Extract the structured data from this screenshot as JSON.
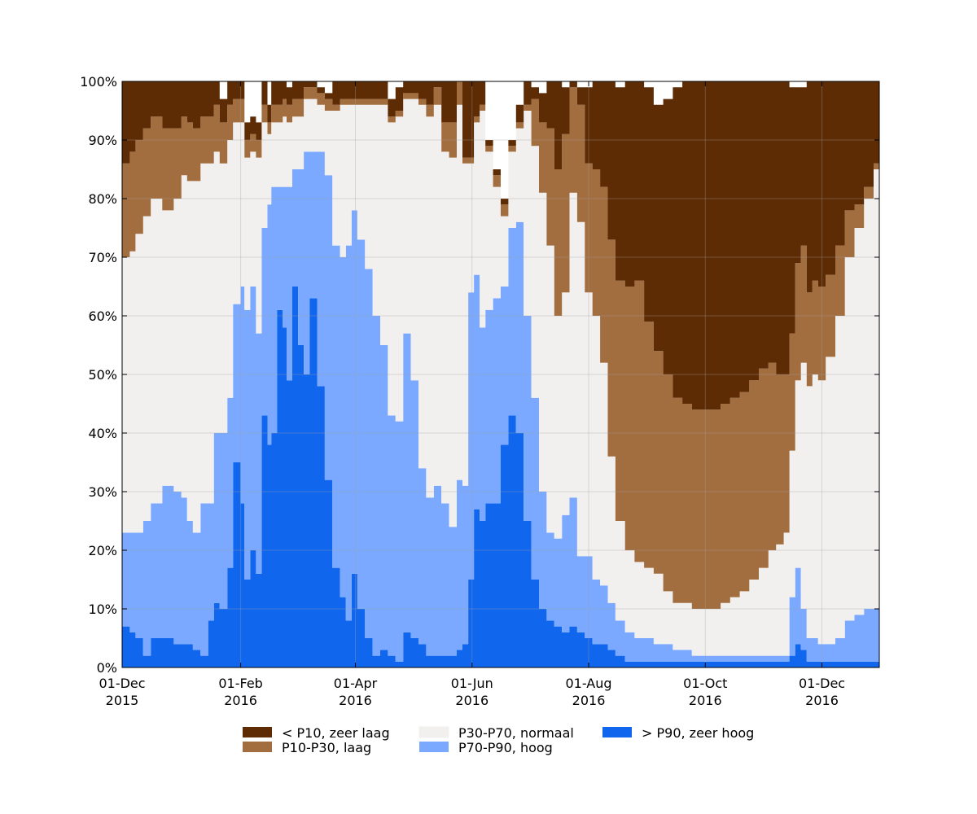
{
  "chart_data": {
    "type": "area",
    "stacked": true,
    "percent": true,
    "ylim": [
      0,
      100
    ],
    "xlim": [
      "2015-12-01",
      "2016-12-31"
    ],
    "grid": true,
    "legend_position": "bottom",
    "yticks": [
      "0%",
      "10%",
      "20%",
      "30%",
      "40%",
      "50%",
      "60%",
      "70%",
      "80%",
      "90%",
      "100%"
    ],
    "xticks": [
      {
        "date": "2015-12-01",
        "line1": "01-Dec",
        "line2": "2015"
      },
      {
        "date": "2016-02-01",
        "line1": "01-Feb",
        "line2": "2016"
      },
      {
        "date": "2016-04-01",
        "line1": "01-Apr",
        "line2": "2016"
      },
      {
        "date": "2016-06-01",
        "line1": "01-Jun",
        "line2": "2016"
      },
      {
        "date": "2016-08-01",
        "line1": "01-Aug",
        "line2": "2016"
      },
      {
        "date": "2016-10-01",
        "line1": "01-Oct",
        "line2": "2016"
      },
      {
        "date": "2016-12-01",
        "line1": "01-Dec",
        "line2": "2016"
      }
    ],
    "x": [
      "2015-12-01",
      "2015-12-05",
      "2015-12-08",
      "2015-12-12",
      "2015-12-16",
      "2015-12-22",
      "2015-12-28",
      "2016-01-01",
      "2016-01-04",
      "2016-01-07",
      "2016-01-11",
      "2016-01-15",
      "2016-01-18",
      "2016-01-21",
      "2016-01-25",
      "2016-01-28",
      "2016-02-01",
      "2016-02-03",
      "2016-02-06",
      "2016-02-09",
      "2016-02-12",
      "2016-02-15",
      "2016-02-17",
      "2016-02-20",
      "2016-02-23",
      "2016-02-25",
      "2016-02-28",
      "2016-03-02",
      "2016-03-05",
      "2016-03-08",
      "2016-03-12",
      "2016-03-16",
      "2016-03-20",
      "2016-03-24",
      "2016-03-27",
      "2016-03-30",
      "2016-04-02",
      "2016-04-06",
      "2016-04-10",
      "2016-04-14",
      "2016-04-18",
      "2016-04-22",
      "2016-04-26",
      "2016-04-30",
      "2016-05-04",
      "2016-05-08",
      "2016-05-12",
      "2016-05-16",
      "2016-05-20",
      "2016-05-24",
      "2016-05-27",
      "2016-05-30",
      "2016-06-02",
      "2016-06-05",
      "2016-06-08",
      "2016-06-12",
      "2016-06-16",
      "2016-06-20",
      "2016-06-24",
      "2016-06-28",
      "2016-07-02",
      "2016-07-06",
      "2016-07-10",
      "2016-07-14",
      "2016-07-18",
      "2016-07-22",
      "2016-07-26",
      "2016-07-30",
      "2016-08-03",
      "2016-08-07",
      "2016-08-11",
      "2016-08-15",
      "2016-08-20",
      "2016-08-25",
      "2016-08-30",
      "2016-09-04",
      "2016-09-09",
      "2016-09-14",
      "2016-09-19",
      "2016-09-24",
      "2016-09-29",
      "2016-10-04",
      "2016-10-09",
      "2016-10-14",
      "2016-10-19",
      "2016-10-24",
      "2016-10-29",
      "2016-11-03",
      "2016-11-07",
      "2016-11-11",
      "2016-11-14",
      "2016-11-17",
      "2016-11-20",
      "2016-11-23",
      "2016-11-26",
      "2016-11-29",
      "2016-12-03",
      "2016-12-08",
      "2016-12-13",
      "2016-12-18",
      "2016-12-23",
      "2016-12-28",
      "2016-12-31"
    ],
    "series": [
      {
        "name": "> P90, zeer hoog",
        "color": "#1166ee",
        "values": [
          7,
          6,
          5,
          2,
          5,
          5,
          4,
          4,
          4,
          3,
          2,
          8,
          11,
          10,
          17,
          35,
          28,
          15,
          20,
          16,
          43,
          38,
          40,
          61,
          58,
          49,
          65,
          55,
          50,
          63,
          48,
          32,
          17,
          12,
          8,
          16,
          10,
          5,
          2,
          3,
          2,
          1,
          6,
          5,
          4,
          2,
          2,
          2,
          2,
          3,
          4,
          15,
          27,
          25,
          28,
          28,
          38,
          43,
          40,
          25,
          15,
          10,
          8,
          7,
          6,
          7,
          6,
          5,
          4,
          4,
          3,
          2,
          1,
          1,
          1,
          1,
          1,
          1,
          1,
          1,
          1,
          1,
          1,
          1,
          1,
          1,
          1,
          1,
          1,
          1,
          2,
          4,
          3,
          1,
          1,
          1,
          1,
          1,
          1,
          1,
          1,
          1,
          1
        ]
      },
      {
        "name": "P70-P90, hoog",
        "color": "#7aa9ff",
        "values": [
          16,
          17,
          18,
          23,
          23,
          26,
          26,
          25,
          21,
          20,
          26,
          20,
          29,
          30,
          29,
          27,
          37,
          46,
          45,
          41,
          32,
          41,
          42,
          21,
          24,
          33,
          20,
          30,
          38,
          25,
          40,
          52,
          55,
          58,
          64,
          62,
          63,
          63,
          58,
          52,
          41,
          41,
          51,
          44,
          30,
          27,
          29,
          26,
          22,
          29,
          27,
          49,
          40,
          33,
          33,
          35,
          27,
          32,
          36,
          35,
          31,
          20,
          15,
          15,
          20,
          22,
          13,
          14,
          11,
          10,
          8,
          6,
          5,
          4,
          4,
          3,
          3,
          2,
          2,
          1,
          1,
          1,
          1,
          1,
          1,
          1,
          1,
          1,
          1,
          1,
          10,
          13,
          7,
          4,
          4,
          3,
          3,
          4,
          7,
          8,
          9,
          9,
          13
        ]
      },
      {
        "name": "P30-P70, normaal",
        "color": "#f2f0ef",
        "values": [
          47,
          48,
          51,
          52,
          52,
          47,
          50,
          55,
          58,
          60,
          58,
          58,
          48,
          46,
          44,
          31,
          28,
          26,
          23,
          30,
          18,
          12,
          11,
          11,
          12,
          11,
          9,
          9,
          9,
          9,
          8,
          11,
          23,
          26,
          24,
          18,
          23,
          28,
          36,
          41,
          50,
          52,
          40,
          48,
          62,
          65,
          65,
          60,
          63,
          64,
          55,
          22,
          26,
          37,
          27,
          19,
          12,
          13,
          16,
          35,
          43,
          51,
          49,
          38,
          38,
          52,
          57,
          45,
          45,
          38,
          25,
          17,
          14,
          13,
          12,
          12,
          9,
          8,
          8,
          8,
          8,
          8,
          9,
          10,
          11,
          13,
          15,
          18,
          19,
          21,
          25,
          32,
          42,
          43,
          45,
          45,
          49,
          55,
          62,
          66,
          70,
          75,
          76
        ]
      },
      {
        "name": "P10-P30, laag",
        "color": "#a26e3f",
        "values": [
          16,
          17,
          16,
          15,
          14,
          14,
          12,
          10,
          10,
          9,
          8,
          8,
          8,
          7,
          6,
          4,
          4,
          3,
          3,
          3,
          3,
          2,
          3,
          3,
          3,
          3,
          3,
          3,
          2,
          2,
          2,
          2,
          1,
          1,
          1,
          1,
          1,
          1,
          1,
          1,
          1,
          1,
          1,
          1,
          1,
          2,
          3,
          5,
          6,
          5,
          1,
          1,
          1,
          1,
          1,
          2,
          2,
          1,
          1,
          1,
          8,
          12,
          20,
          25,
          27,
          18,
          20,
          22,
          25,
          30,
          37,
          41,
          45,
          48,
          42,
          38,
          37,
          35,
          34,
          34,
          34,
          34,
          34,
          34,
          34,
          34,
          34,
          32,
          29,
          27,
          20,
          20,
          20,
          16,
          16,
          16,
          14,
          12,
          8,
          4,
          2,
          1,
          1
        ]
      },
      {
        "name": "< P10, zeer laag",
        "color": "#5e2c04",
        "values": [
          14,
          12,
          10,
          8,
          6,
          8,
          8,
          6,
          7,
          8,
          6,
          6,
          4,
          4,
          4,
          3,
          3,
          3,
          3,
          3,
          4,
          3,
          4,
          4,
          3,
          3,
          3,
          3,
          1,
          1,
          1,
          1,
          4,
          3,
          3,
          3,
          3,
          3,
          3,
          3,
          3,
          4,
          2,
          2,
          3,
          4,
          1,
          7,
          7,
          3,
          13,
          13,
          6,
          4,
          1,
          1,
          1,
          1,
          3,
          4,
          2,
          5,
          8,
          15,
          8,
          1,
          3,
          13,
          15,
          18,
          27,
          33,
          35,
          34,
          40,
          42,
          47,
          53,
          55,
          56,
          56,
          56,
          55,
          54,
          53,
          51,
          49,
          48,
          50,
          50,
          42,
          30,
          27,
          36,
          34,
          35,
          33,
          28,
          22,
          21,
          18,
          14,
          9
        ]
      }
    ],
    "legend": [
      {
        "label": "< P10, zeer laag",
        "color": "#5e2c04"
      },
      {
        "label": "P10-P30, laag",
        "color": "#a26e3f"
      },
      {
        "label": "P30-P70, normaal",
        "color": "#f2f0ef"
      },
      {
        "label": "P70-P90, hoog",
        "color": "#7aa9ff"
      },
      {
        "label": "> P90, zeer hoog",
        "color": "#1166ee"
      }
    ]
  }
}
